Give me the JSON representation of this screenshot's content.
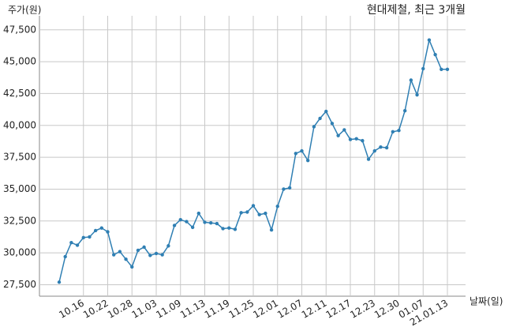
{
  "chart_data": {
    "type": "line",
    "title": "현대제철, 최근 3개월",
    "y_label": "주가(원)",
    "x_label": "날짜(일)",
    "categories": [
      null,
      null,
      null,
      null,
      "10.16",
      null,
      null,
      null,
      "10.22",
      null,
      null,
      null,
      "10.28",
      null,
      null,
      null,
      "11.03",
      null,
      null,
      null,
      "11.09",
      null,
      null,
      null,
      "11.13",
      null,
      null,
      null,
      "11.19",
      null,
      null,
      null,
      "11.25",
      null,
      null,
      null,
      "12.01",
      null,
      null,
      null,
      "12.07",
      null,
      null,
      null,
      "12.11",
      null,
      null,
      null,
      "12.17",
      null,
      null,
      null,
      "12.23",
      null,
      null,
      null,
      "12.30",
      null,
      null,
      null,
      "01.07",
      null,
      null,
      null,
      "21.01.13"
    ],
    "series": [
      {
        "name": "현대제철",
        "color": "#2f7fb3",
        "values": [
          27700,
          29700,
          30800,
          30600,
          31200,
          31250,
          31750,
          31950,
          31650,
          29850,
          30100,
          29500,
          28900,
          30200,
          30450,
          29800,
          29950,
          29850,
          30550,
          32150,
          32600,
          32450,
          32000,
          33100,
          32400,
          32350,
          32300,
          31900,
          31950,
          31850,
          33150,
          33200,
          33700,
          33000,
          33100,
          31800,
          33650,
          35000,
          35100,
          37800,
          38000,
          37250,
          39900,
          40550,
          41100,
          40150,
          39200,
          39650,
          38900,
          38950,
          38800,
          37350,
          38000,
          38300,
          38250,
          39500,
          39600,
          41150,
          43550,
          42400,
          44450,
          46700,
          45550,
          44400,
          44400
        ]
      }
    ],
    "ylim": [
      26600,
      48600
    ],
    "yticks": [
      {
        "value": 27500,
        "label": "27,500"
      },
      {
        "value": 30000,
        "label": "30,000"
      },
      {
        "value": 32500,
        "label": "32,500"
      },
      {
        "value": 35000,
        "label": "35,000"
      },
      {
        "value": 37500,
        "label": "37,500"
      },
      {
        "value": 40000,
        "label": "40,000"
      },
      {
        "value": 42500,
        "label": "42,500"
      },
      {
        "value": 45000,
        "label": "45,000"
      },
      {
        "value": 47500,
        "label": "47,500"
      }
    ],
    "grid": true
  }
}
